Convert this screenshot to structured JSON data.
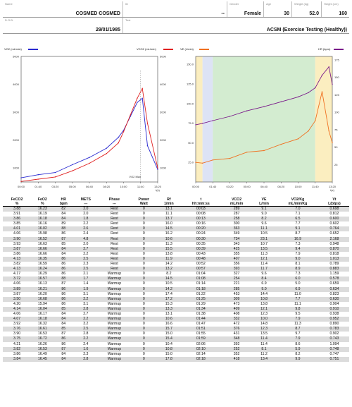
{
  "header": {
    "name_label": "Name",
    "name": "COSMED COSMED",
    "id_label": "ID",
    "id": "--",
    "gender_label": "Gender",
    "gender": "Female",
    "age_label": "Age",
    "age": "30",
    "weight_label": "Weight (kg)",
    "weight": "52.0",
    "height_label": "Height (cm)",
    "height": "160",
    "dob_label": "D.O.B.",
    "dob": "29/01/1985",
    "test_label": "Test",
    "test": "ACSM (Exercise Testing (Healthy))"
  },
  "colors": {
    "vo2": "#2a2ad0",
    "vco2": "#e02020",
    "ve": "#f07020",
    "hr": "#7a1a8a",
    "zone_yellow": "#fbeec0",
    "zone_blue": "#dde3f5",
    "zone_green": "#d3ecd0"
  },
  "chart_data": [
    {
      "type": "line",
      "series": [
        {
          "name": "VO2 (mL/min)",
          "axis": "left",
          "color": "#2a2ad0",
          "x": [
            "00:00",
            "01:40",
            "03:20",
            "05:00",
            "06:40",
            "08:20",
            "09:30",
            "10:00",
            "10:40",
            "11:20",
            "11:50",
            "12:20",
            "13:20"
          ],
          "values": [
            650,
            760,
            840,
            1120,
            1380,
            1710,
            2100,
            2350,
            2850,
            3350,
            3500,
            1800,
            950
          ]
        },
        {
          "name": "VCO2 (mL/min)",
          "axis": "right",
          "color": "#e02020",
          "x": [
            "00:00",
            "01:40",
            "03:20",
            "05:00",
            "06:40",
            "08:20",
            "09:30",
            "10:00",
            "10:40",
            "11:20",
            "11:50",
            "12:20",
            "13:20"
          ],
          "values": [
            520,
            600,
            680,
            900,
            1170,
            1520,
            1900,
            2300,
            2900,
            3500,
            3850,
            2600,
            1000
          ]
        }
      ],
      "ylim_left": [
        500,
        5000
      ],
      "yticks_left": [
        "1000",
        "2000",
        "3000",
        "4000",
        "5000"
      ],
      "ylim_right": [
        500,
        5000
      ],
      "yticks_right": [
        "1000",
        "2000",
        "3000",
        "4000",
        "5000"
      ],
      "xticks": [
        "00:00",
        "01:40",
        "03:20",
        "05:00",
        "06:40",
        "08:20",
        "10:00",
        "11:40",
        "13:20"
      ],
      "x_extra": "t(s)",
      "annotation": "VO2 Max",
      "grid": false
    },
    {
      "type": "line",
      "series": [
        {
          "name": "VE (L/min)",
          "axis": "left",
          "color": "#f07020",
          "x": [
            "00:00",
            "00:40",
            "01:40",
            "03:20",
            "05:00",
            "06:40",
            "08:20",
            "10:00",
            "11:00",
            "11:40",
            "12:20",
            "13:00",
            "13:20"
          ],
          "values": [
            25,
            24,
            28,
            30,
            38,
            40,
            48,
            55,
            65,
            78,
            115,
            65,
            50
          ]
        },
        {
          "name": "HR (bpm)",
          "axis": "right",
          "color": "#7a1a8a",
          "x": [
            "00:00",
            "00:40",
            "01:40",
            "03:20",
            "05:00",
            "06:40",
            "08:20",
            "10:00",
            "11:00",
            "11:40",
            "12:20",
            "13:00",
            "13:20"
          ],
          "values": [
            82,
            84,
            88,
            94,
            102,
            108,
            115,
            122,
            128,
            135,
            153,
            165,
            140
          ]
        }
      ],
      "ylim_left": [
        0,
        160
      ],
      "yticks_left": [
        "25.0",
        "50.0",
        "75.0",
        "100.0",
        "125.0",
        "150.0"
      ],
      "ylim_right": [
        0,
        180
      ],
      "yticks_right": [
        "25",
        "50",
        "75",
        "100",
        "125",
        "150",
        "175"
      ],
      "xticks": [
        "00:00",
        "01:40",
        "03:20",
        "05:00",
        "06:40",
        "08:20",
        "10:00",
        "11:40",
        "13:20"
      ],
      "x_extra": "t(s)",
      "zones": [
        {
          "from": "00:00",
          "to": "00:40",
          "color": "yellow"
        },
        {
          "from": "00:40",
          "to": "01:40",
          "color": "blue"
        },
        {
          "from": "01:40",
          "to": "11:40",
          "color": "green"
        },
        {
          "from": "11:40",
          "to": "13:20",
          "color": "yellow"
        }
      ],
      "grid": false
    }
  ],
  "table": {
    "headers": [
      "FeCO2",
      "FeO2",
      "HR",
      "METS",
      "Phase",
      "Power",
      "Rf",
      "t",
      "VCO2",
      "VE",
      "VO2/Kg",
      "Vt"
    ],
    "units": [
      "%",
      "%",
      "bpm",
      "---",
      "---",
      "Watt",
      "1/min",
      "hh:mm:ss",
      "mL/min",
      "L/min",
      "mL/min/Kg",
      "L(btps)"
    ],
    "rows": [
      [
        "3.88",
        "16.23",
        "82",
        "2.0",
        "Rest",
        "0",
        "13.1",
        "00:03",
        "289",
        "9.1",
        "7.0",
        "0.698"
      ],
      [
        "3.91",
        "16.19",
        "84",
        "2.0",
        "Rest",
        "0",
        "11.1",
        "00:08",
        "287",
        "9.0",
        "7.1",
        "0.812"
      ],
      [
        "3.86",
        "16.18",
        "84",
        "1.8",
        "Rest",
        "0",
        "13.7",
        "00:13",
        "258",
        "8.2",
        "6.5",
        "0.600"
      ],
      [
        "3.85",
        "16.16",
        "89",
        "2.2",
        "Rest",
        "0",
        "16.0",
        "00:16",
        "300",
        "9.6",
        "7.7",
        "0.602"
      ],
      [
        "4.01",
        "16.02",
        "88",
        "2.6",
        "Rest",
        "0",
        "14.5",
        "00:20",
        "363",
        "11.1",
        "9.1",
        "0.764"
      ],
      [
        "4.06",
        "15.98",
        "86",
        "2.4",
        "Rest",
        "0",
        "16.2",
        "00:24",
        "349",
        "10.5",
        "8.7",
        "0.652"
      ],
      [
        "3.90",
        "16.52",
        "87",
        "4.8",
        "Rest",
        "0",
        "10.6",
        "00:30",
        "734",
        "23.1",
        "16.9",
        "2.168"
      ],
      [
        "3.93",
        "16.63",
        "85",
        "2.0",
        "Rest",
        "0",
        "11.3",
        "00:35",
        "343",
        "10.7",
        "7.3",
        "0.948"
      ],
      [
        "3.87",
        "16.66",
        "84",
        "2.7",
        "Rest",
        "0",
        "15.5",
        "00:39",
        "425",
        "13.5",
        "9.4",
        "0.870"
      ],
      [
        "3.86",
        "16.66",
        "84",
        "2.2",
        "Rest",
        "0",
        "13.8",
        "00:43",
        "355",
        "11.3",
        "7.9",
        "0.818"
      ],
      [
        "4.13",
        "16.35",
        "86",
        "2.5",
        "Rest",
        "0",
        "11.9",
        "00:48",
        "407",
        "12.1",
        "9.0",
        "1.013"
      ],
      [
        "3.82",
        "16.59",
        "86",
        "2.3",
        "Rest",
        "0",
        "14.2",
        "00:52",
        "356",
        "11.4",
        "8.1",
        "0.789"
      ],
      [
        "4.13",
        "16.24",
        "86",
        "2.5",
        "Rest",
        "0",
        "13.2",
        "00:57",
        "393",
        "11.7",
        "8.9",
        "0.883"
      ],
      [
        "4.17",
        "16.29",
        "86",
        "2.1",
        "Warmup",
        "0",
        "8.2",
        "01:04",
        "327",
        "9.6",
        "7.3",
        "1.159"
      ],
      [
        "3.72",
        "16.57",
        "88",
        "1.7",
        "Warmup",
        "0",
        "14.5",
        "01:08",
        "254",
        "8.4",
        "6.0",
        "0.578"
      ],
      [
        "4.06",
        "16.13",
        "87",
        "1.4",
        "Warmup",
        "0",
        "10.5",
        "01:14",
        "221",
        "6.9",
        "5.0",
        "0.659"
      ],
      [
        "3.89",
        "16.21",
        "86",
        "1.9",
        "Warmup",
        "0",
        "14.2",
        "01:18",
        "285",
        "9.0",
        "6.9",
        "0.634"
      ],
      [
        "3.87",
        "16.20",
        "86",
        "3.1",
        "Warmup",
        "0",
        "17.4",
        "01:22",
        "453",
        "14.4",
        "11.0",
        "0.823"
      ],
      [
        "3.50",
        "16.68",
        "86",
        "2.2",
        "Warmup",
        "0",
        "17.2",
        "01:25",
        "309",
        "10.8",
        "7.7",
        "0.630"
      ],
      [
        "4.20",
        "15.94",
        "86",
        "3.1",
        "Warmup",
        "0",
        "15.3",
        "01:29",
        "473",
        "13.8",
        "11.1",
        "0.904"
      ],
      [
        "4.14",
        "16.04",
        "85",
        "2.8",
        "Warmup",
        "0",
        "13.3",
        "01:34",
        "409",
        "12.1",
        "9.8",
        "0.910"
      ],
      [
        "4.06",
        "16.17",
        "84",
        "2.7",
        "Warmup",
        "0",
        "13.1",
        "01:38",
        "408",
        "12.3",
        "9.5",
        "0.938"
      ],
      [
        "4.07",
        "16.18",
        "84",
        "2.2",
        "Warmup",
        "0",
        "10.6",
        "01:44",
        "332",
        "10.0",
        "7.9",
        "0.952"
      ],
      [
        "3.92",
        "16.32",
        "84",
        "3.2",
        "Warmup",
        "0",
        "16.6",
        "01:47",
        "472",
        "14.8",
        "11.3",
        "0.890"
      ],
      [
        "3.76",
        "16.61",
        "85",
        "2.5",
        "Warmup",
        "0",
        "15.7",
        "01:51",
        "376",
        "12.3",
        "8.7",
        "0.783"
      ],
      [
        "3.90",
        "16.53",
        "87",
        "2.8",
        "Warmup",
        "0",
        "15.0",
        "01:55",
        "431",
        "13.5",
        "9.7",
        "0.902"
      ],
      [
        "3.75",
        "16.72",
        "86",
        "2.2",
        "Warmup",
        "0",
        "15.4",
        "01:59",
        "348",
        "11.4",
        "7.9",
        "0.743"
      ],
      [
        "4.21",
        "16.26",
        "86",
        "2.4",
        "Warmup",
        "0",
        "10.4",
        "02:06",
        "392",
        "11.4",
        "8.6",
        "1.094"
      ],
      [
        "3.82",
        "16.53",
        "87",
        "1.6",
        "Warmup",
        "0",
        "10.8",
        "02:10",
        "252",
        "8.1",
        "5.9",
        "0.748"
      ],
      [
        "3.86",
        "16.49",
        "84",
        "2.3",
        "Warmup",
        "0",
        "15.0",
        "02:14",
        "352",
        "11.2",
        "8.2",
        "0.747"
      ],
      [
        "3.84",
        "16.45",
        "84",
        "2.8",
        "Warmup",
        "0",
        "17.8",
        "02:18",
        "418",
        "13.4",
        "9.9",
        "0.751"
      ]
    ]
  }
}
